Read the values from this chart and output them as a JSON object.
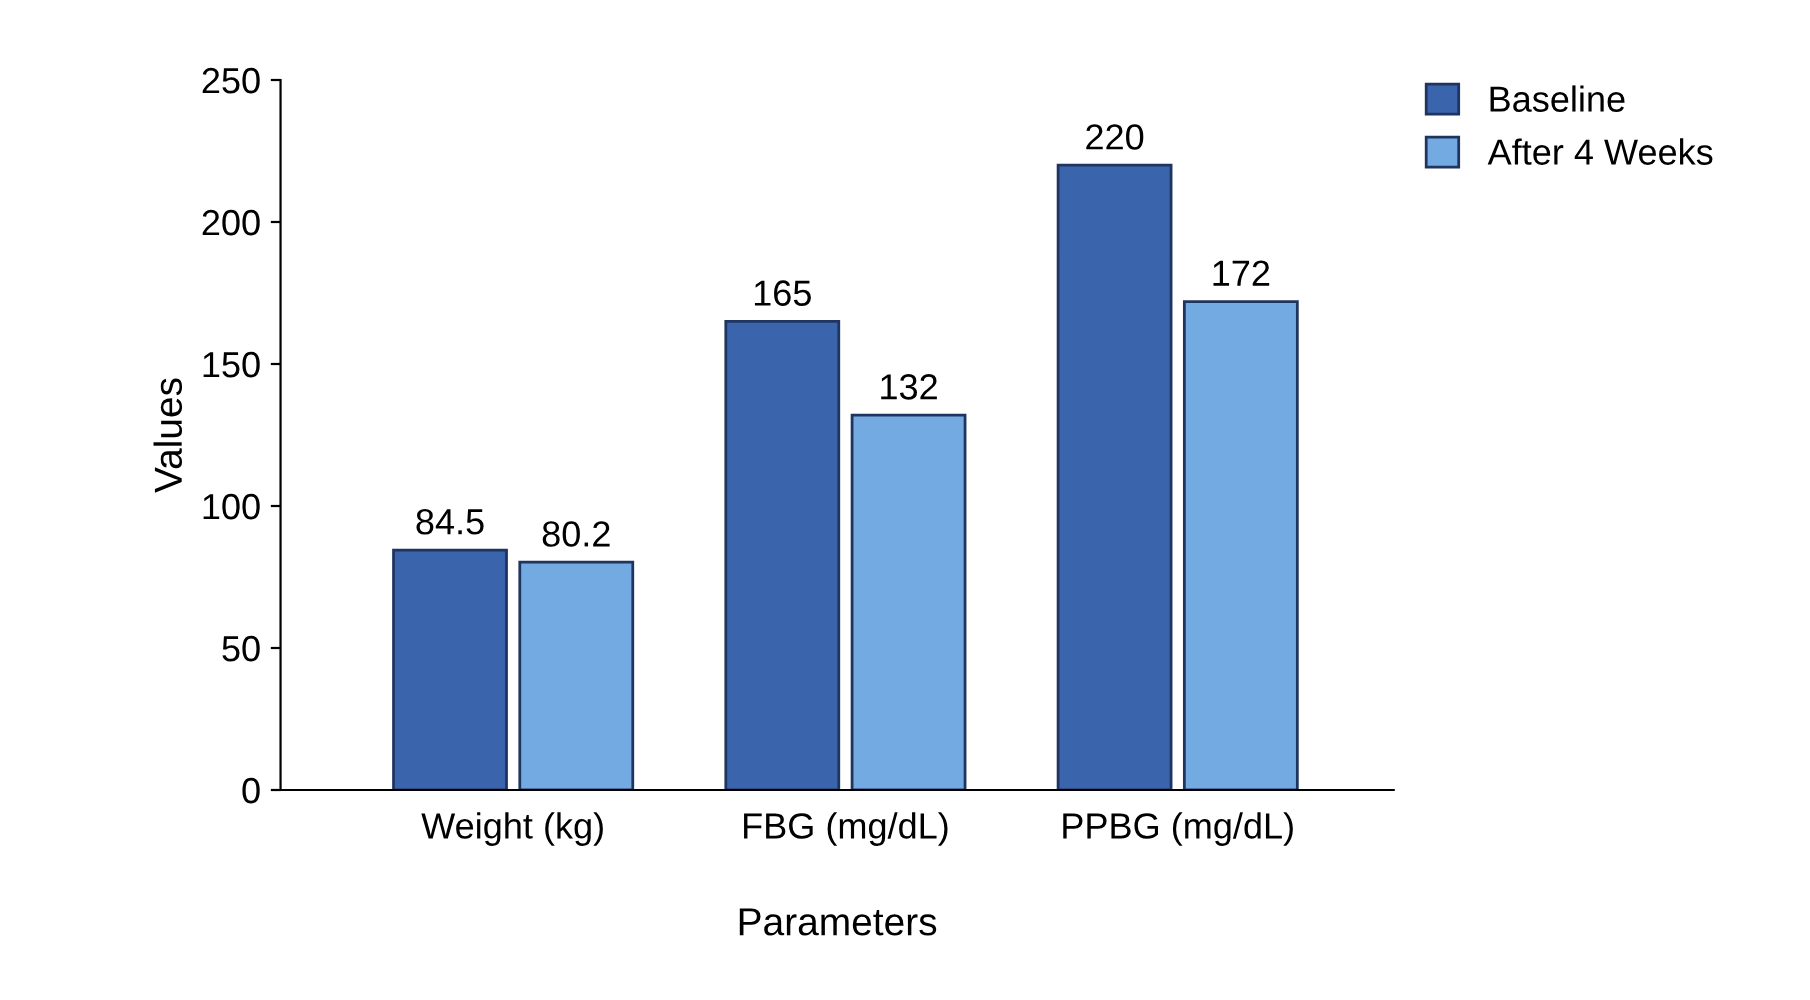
{
  "chart_data": {
    "type": "bar",
    "xlabel": "Parameters",
    "ylabel": "Values",
    "categories": [
      "Weight (kg)",
      "FBG (mg/dL)",
      "PPBG (mg/dL)"
    ],
    "series": [
      {
        "name": "Baseline",
        "color": "#3a65ad",
        "values": [
          84.5,
          165,
          220
        ]
      },
      {
        "name": "After 4 Weeks",
        "color": "#74aae2",
        "values": [
          80.2,
          132,
          172
        ]
      }
    ],
    "ylim": [
      0,
      250
    ],
    "yticks": [
      0,
      50,
      100,
      150,
      200,
      250
    ],
    "grid": false,
    "legend": "top right",
    "data_labels": true
  }
}
